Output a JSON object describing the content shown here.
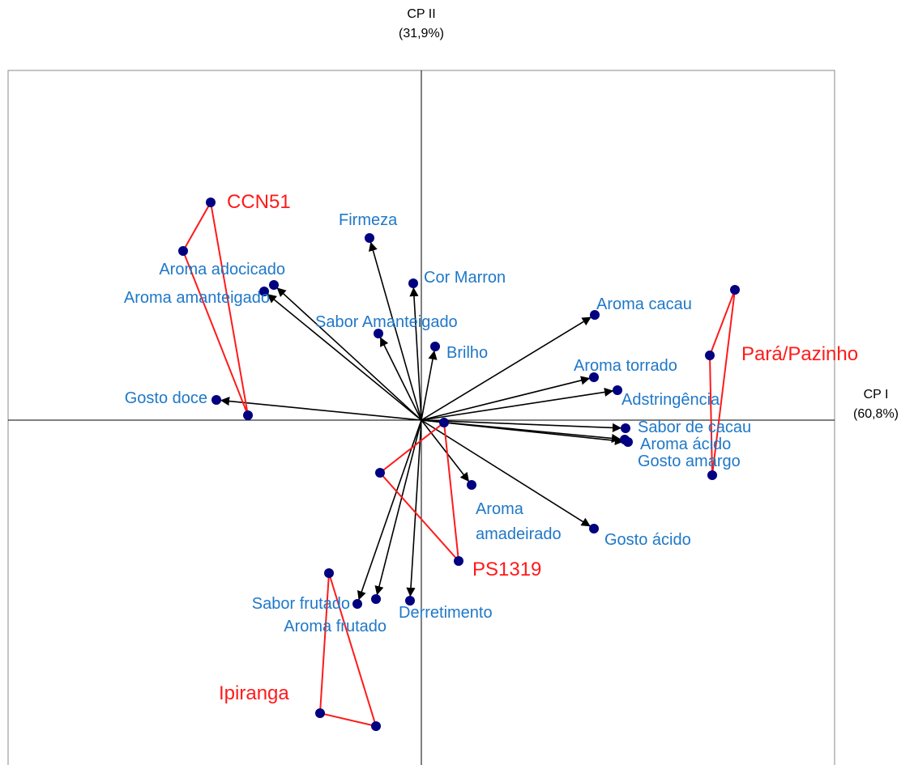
{
  "chart_data": {
    "type": "biplot",
    "x_label": "CP I\n(60,8%)",
    "y_label": "CP II\n(31,9%)",
    "xlim": [
      -5.1,
      5.1
    ],
    "ylim": [
      -4.26,
      4.32
    ],
    "variables": {
      "color": "#1f78c8",
      "point_color": "#000080",
      "arrow_color": "#000000",
      "names": [
        "Firmeza",
        "Cor Marron",
        "Aroma adocicado",
        "Aroma amanteigado",
        "Sabor Amanteigado",
        "Brilho",
        "Aroma cacau",
        "Aroma torrado",
        "Adstringência",
        "Gosto doce",
        "Sabor de cacau",
        "Aroma ácido",
        "Gosto amargo",
        "Aroma amadeirado",
        "Gosto ácido",
        "Sabor frutado",
        "Aroma frutado",
        "Derretimento"
      ],
      "x": [
        -0.64,
        -0.1,
        -1.82,
        -1.94,
        -0.53,
        0.17,
        2.14,
        2.13,
        2.42,
        -2.53,
        2.52,
        2.55,
        2.51,
        0.62,
        2.13,
        -0.79,
        -0.56,
        -0.14
      ],
      "y": [
        2.25,
        1.69,
        1.67,
        1.59,
        1.07,
        0.91,
        1.3,
        0.53,
        0.37,
        0.25,
        -0.1,
        -0.27,
        -0.24,
        -0.8,
        -1.34,
        -2.27,
        -2.21,
        -2.23
      ]
    },
    "samples": [
      {
        "name": "CCN51",
        "color": "#ff1a1a",
        "x": [
          -2.6,
          -2.94,
          -2.14
        ],
        "y": [
          2.69,
          2.09,
          0.06
        ]
      },
      {
        "name": "Pará/Pazinho",
        "color": "#ff1a1a",
        "x": [
          3.87,
          3.56,
          3.59
        ],
        "y": [
          1.61,
          0.8,
          -0.68
        ]
      },
      {
        "name": "PS1319",
        "color": "#ff1a1a",
        "x": [
          0.28,
          -0.51,
          0.46
        ],
        "y": [
          -0.03,
          -0.65,
          -1.74
        ]
      },
      {
        "name": "Ipiranga",
        "color": "#ff1a1a",
        "x": [
          -1.14,
          -1.25,
          -0.56
        ],
        "y": [
          -1.89,
          -3.62,
          -3.78
        ]
      }
    ]
  }
}
